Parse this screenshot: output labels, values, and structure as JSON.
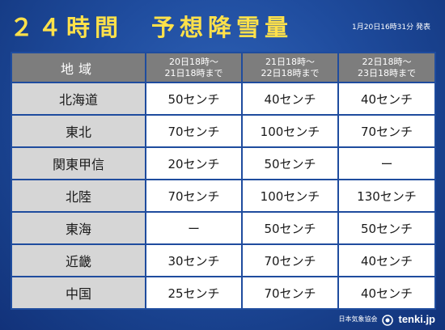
{
  "header": {
    "title": "２４時間　予想降雪量",
    "issued": "1月20日16時31分 発表"
  },
  "table": {
    "region_header": "地域",
    "periods": [
      {
        "line1": "20日18時～",
        "line2": "21日18時まで"
      },
      {
        "line1": "21日18時～",
        "line2": "22日18時まで"
      },
      {
        "line1": "22日18時～",
        "line2": "23日18時まで"
      }
    ],
    "rows": [
      {
        "region": "北海道",
        "values": [
          "50センチ",
          "40センチ",
          "40センチ"
        ]
      },
      {
        "region": "東北",
        "values": [
          "70センチ",
          "100センチ",
          "70センチ"
        ]
      },
      {
        "region": "関東甲信",
        "values": [
          "20センチ",
          "50センチ",
          "ー"
        ]
      },
      {
        "region": "北陸",
        "values": [
          "70センチ",
          "100センチ",
          "130センチ"
        ]
      },
      {
        "region": "東海",
        "values": [
          "ー",
          "50センチ",
          "50センチ"
        ]
      },
      {
        "region": "近畿",
        "values": [
          "30センチ",
          "70センチ",
          "40センチ"
        ]
      },
      {
        "region": "中国",
        "values": [
          "25センチ",
          "70センチ",
          "40センチ"
        ]
      }
    ]
  },
  "footer": {
    "org": "日本気象協会",
    "logo": "tenki.jp",
    "logo_icon": "sun-cloud-icon"
  },
  "colors": {
    "title": "#ffe14a",
    "background": "#1f4c9e",
    "header_cell": "#7d7d7d",
    "region_cell": "#d6d6d6",
    "value_cell": "#ffffff"
  }
}
